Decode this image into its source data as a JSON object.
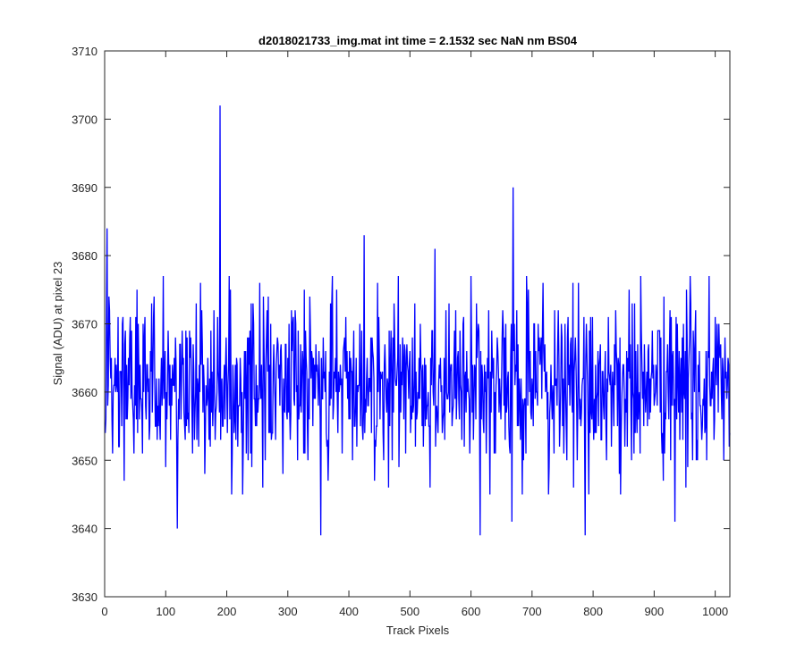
{
  "chart_data": {
    "type": "line",
    "title": "d2018021733_img.mat int time = 2.1532 sec  NaN nm BS04",
    "xlabel": "Track Pixels",
    "ylabel": "Signal (ADU) at pixel 23",
    "xlim": [
      0,
      1024
    ],
    "ylim": [
      3630,
      3710
    ],
    "xticks": [
      0,
      100,
      200,
      300,
      400,
      500,
      600,
      700,
      800,
      900,
      1000
    ],
    "yticks": [
      3630,
      3640,
      3650,
      3660,
      3670,
      3680,
      3690,
      3700,
      3710
    ],
    "grid": false,
    "legend": "none",
    "series_color": "#0000ff",
    "series": [
      {
        "x_start": 1,
        "x_step": 1,
        "n_points": 1024,
        "mean": 3661,
        "std": 6.5,
        "min_observed": 3639,
        "max_observed": 3702,
        "notable_points": [
          {
            "x": 1,
            "y": 3654
          },
          {
            "x": 4,
            "y": 3684
          },
          {
            "x": 119,
            "y": 3640
          },
          {
            "x": 189,
            "y": 3702
          },
          {
            "x": 354,
            "y": 3639
          },
          {
            "x": 425,
            "y": 3683
          },
          {
            "x": 541,
            "y": 3681
          },
          {
            "x": 615,
            "y": 3639
          },
          {
            "x": 667,
            "y": 3641
          },
          {
            "x": 669,
            "y": 3690
          },
          {
            "x": 787,
            "y": 3639
          },
          {
            "x": 934,
            "y": 3641
          },
          {
            "x": 1024,
            "y": 3654
          }
        ]
      }
    ]
  },
  "colors": {
    "axes": "#262626",
    "line": "#0000ff",
    "background": "#ffffff"
  }
}
